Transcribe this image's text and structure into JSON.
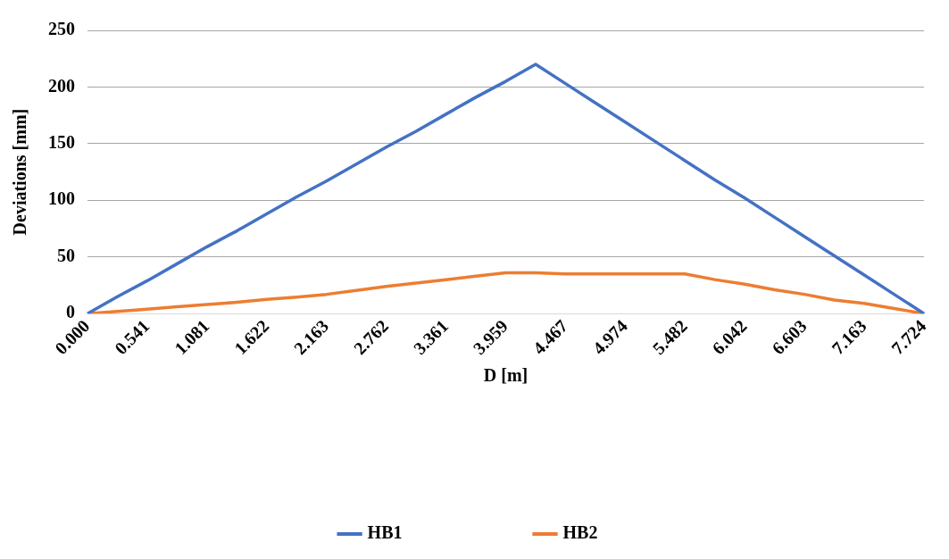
{
  "chart_data": {
    "type": "line",
    "xlabel": "D [m]",
    "ylabel": "Deviations [mm]",
    "categories": [
      "0.000",
      null,
      "0.541",
      null,
      "1.081",
      null,
      "1.622",
      null,
      "2.163",
      null,
      "2.762",
      null,
      "3.361",
      null,
      "3.959",
      null,
      "4.467",
      null,
      "4.974",
      null,
      "5.482",
      null,
      "6.042",
      null,
      "6.603",
      null,
      "7.163",
      null,
      "7.724"
    ],
    "series": [
      {
        "name": "HB1",
        "color": "#4472c4",
        "values": [
          0,
          15,
          29,
          44,
          59,
          73,
          88,
          103,
          117,
          132,
          147,
          161,
          176,
          191,
          205,
          220,
          203,
          186,
          169,
          152,
          135,
          118,
          102,
          85,
          68,
          51,
          34,
          17,
          0
        ]
      },
      {
        "name": "HB2",
        "color": "#ed7d31",
        "values": [
          0,
          2,
          4,
          6,
          8,
          10,
          12.5,
          14.5,
          17,
          20.5,
          24,
          27,
          30,
          33,
          36,
          36,
          35,
          35,
          35,
          35,
          35,
          30,
          26,
          21,
          17,
          12,
          9,
          4.5,
          0
        ]
      }
    ],
    "ylim": [
      0,
      250
    ],
    "yticks": [
      0,
      50,
      100,
      150,
      200,
      250
    ],
    "grid": "y",
    "legend": "bottom",
    "marker": "none",
    "line_style": "solid"
  }
}
